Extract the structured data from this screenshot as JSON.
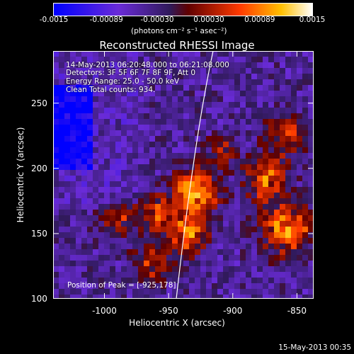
{
  "colorbar": {
    "ticks": [
      "-0.0015",
      "-0.00089",
      "-0.00030",
      "0.00030",
      "0.00089",
      "0.0015"
    ],
    "tick_values": [
      -0.0015,
      -0.00089,
      -0.0003,
      0.0003,
      0.00089,
      0.0015
    ],
    "units": "(photons cm⁻² s⁻¹ asec⁻²)",
    "colors": [
      "#0000ff",
      "#7a2bd0",
      "#3a1a66",
      "#8a0000",
      "#ff4a00",
      "#ffd000",
      "#ffffff"
    ]
  },
  "title": "Reconstructed RHESSI Image",
  "info": {
    "time": "14-May-2013 06:20:48.000 to 06:21:08.000",
    "detectors": "Detectors: 3F 5F 6F 7F 8F 9F, Att 0",
    "energy": "Energy Range: 25.0 - 50.0 keV",
    "clean": "Clean     Total counts: 934."
  },
  "peak": "Position of Peak = [-925,178]",
  "axes": {
    "xlabel": "Heliocentric X (arcsec)",
    "ylabel": "Heliocentric Y (arcsec)",
    "xticks": [
      "-1000",
      "-950",
      "-900",
      "-850"
    ],
    "xtick_values": [
      -1000,
      -950,
      -900,
      -850
    ],
    "yticks": [
      "250",
      "200",
      "150",
      "100"
    ],
    "ytick_values": [
      250,
      200,
      150,
      100
    ],
    "xrange": [
      -1040,
      -837
    ],
    "yrange": [
      100,
      290
    ]
  },
  "timestamp": "15-May-2013 00:35"
}
